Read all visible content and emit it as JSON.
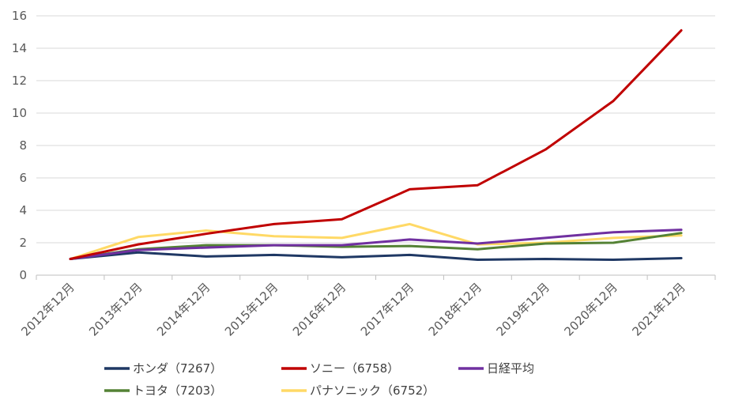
{
  "chart_data": {
    "type": "line",
    "title": "",
    "xlabel": "",
    "ylabel": "",
    "ylim": [
      0,
      16
    ],
    "yticks": [
      0,
      2,
      4,
      6,
      8,
      10,
      12,
      14,
      16
    ],
    "ytick_labels": [
      "0",
      "2",
      "4",
      "6",
      "8",
      "10",
      "12",
      "14",
      "16"
    ],
    "grid": true,
    "legend_position": "bottom",
    "categories": [
      "2012年12月",
      "2013年12月",
      "2014年12月",
      "2015年12月",
      "2016年12月",
      "2017年12月",
      "2018年12月",
      "2019年12月",
      "2020年12月",
      "2021年12月"
    ],
    "series": [
      {
        "name": "ホンダ（7267）",
        "color": "#1f3864",
        "values": [
          1.0,
          1.4,
          1.15,
          1.25,
          1.1,
          1.25,
          0.95,
          1.0,
          0.95,
          1.05
        ]
      },
      {
        "name": "ソニー（6758）",
        "color": "#c00000",
        "values": [
          1.0,
          1.9,
          2.55,
          3.15,
          3.45,
          5.3,
          5.55,
          7.75,
          10.75,
          15.1
        ]
      },
      {
        "name": "日経平均",
        "color": "#7030a0",
        "values": [
          1.0,
          1.55,
          1.7,
          1.85,
          1.85,
          2.2,
          1.95,
          2.3,
          2.65,
          2.8
        ]
      },
      {
        "name": "トヨタ（7203）",
        "color": "#548235",
        "values": [
          1.0,
          1.6,
          1.85,
          1.85,
          1.75,
          1.8,
          1.6,
          1.95,
          2.0,
          2.6
        ]
      },
      {
        "name": "パナソニック（6752）",
        "color": "#ffd966",
        "values": [
          1.0,
          2.35,
          2.75,
          2.4,
          2.3,
          3.15,
          1.9,
          2.0,
          2.3,
          2.45
        ]
      }
    ],
    "draw_order": [
      4,
      3,
      0,
      2,
      1
    ]
  }
}
